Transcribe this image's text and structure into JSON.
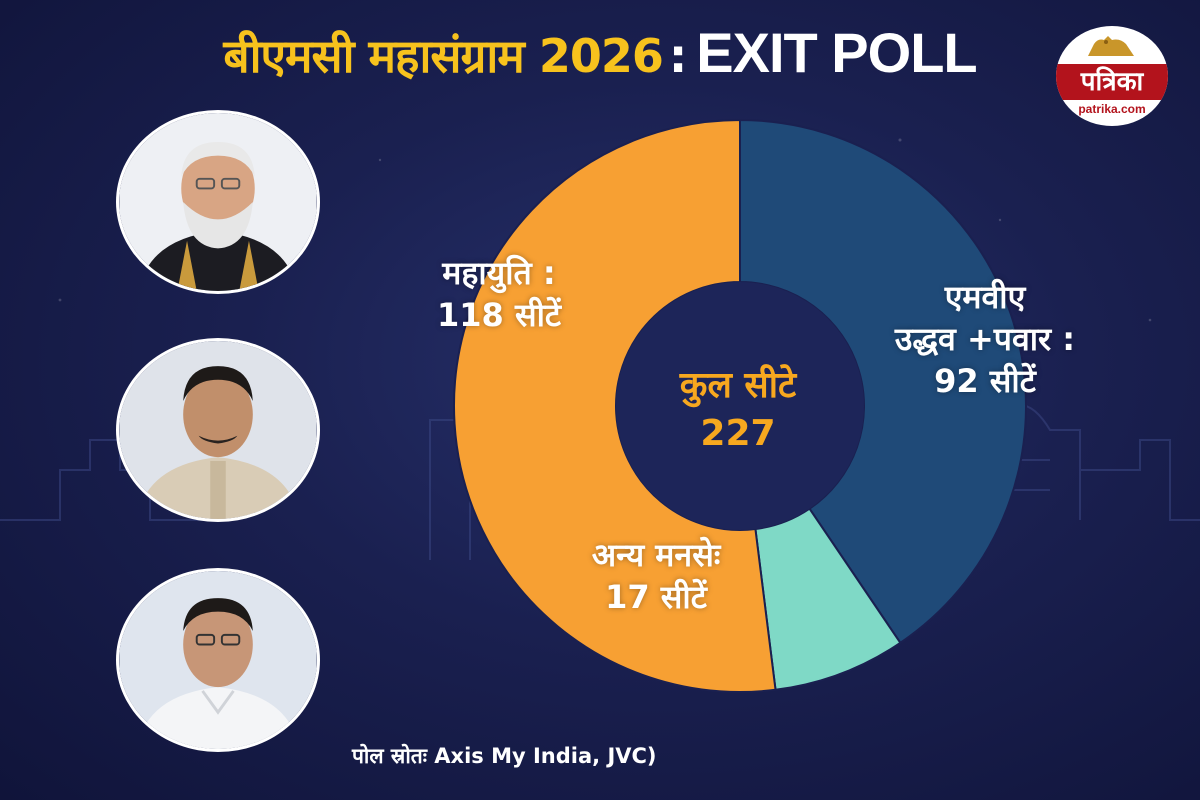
{
  "header": {
    "title_hindi": "बीएमसी महासंग्राम 2026",
    "title_separator": ":",
    "title_english": "EXIT POLL"
  },
  "logo": {
    "name": "पत्रिका",
    "url": "patrika.com",
    "icon": "lion-emblem-icon",
    "color": "#b3131c"
  },
  "portraits": [
    "person-portrait-1",
    "person-portrait-2",
    "person-portrait-3"
  ],
  "chart_data": {
    "type": "pie",
    "donut": true,
    "categories": [
      "महायुति",
      "एमवीए उद्धव +पवार",
      "अन्य मनसे"
    ],
    "values": [
      118,
      92,
      17
    ],
    "unit": "सीटें",
    "colors": [
      "#f7a033",
      "#1f4a78",
      "#7fd9c6"
    ],
    "labels": [
      {
        "line1": "महायुति :",
        "line2": "118 सीटें"
      },
      {
        "line1": "एमवीए",
        "line2": "उद्धव +पवार :",
        "line3": "92 सीटें"
      },
      {
        "line1": "अन्य मनसेः",
        "line2": "17 सीटें"
      }
    ],
    "center": {
      "label": "कुल सीटे",
      "total": "227"
    }
  },
  "source": "पोल स्रोतः Axis My India, JVC)"
}
